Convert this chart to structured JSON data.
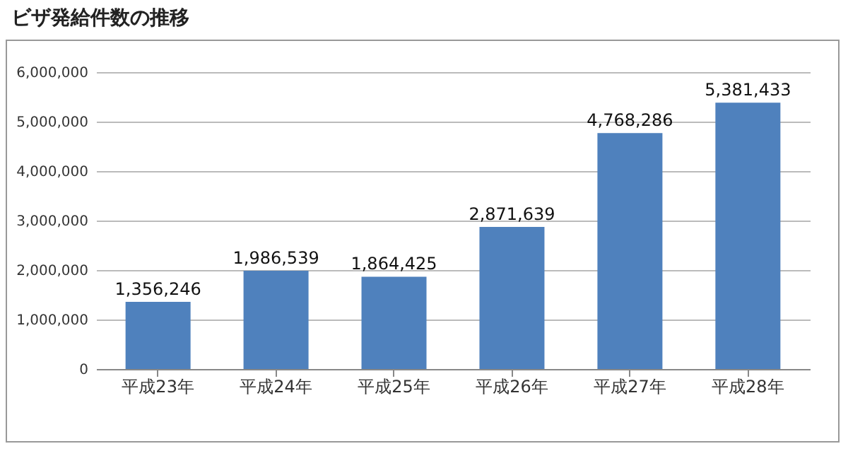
{
  "chart_data": {
    "type": "bar",
    "title": "ビザ発給件数の推移",
    "categories": [
      "平成23年",
      "平成24年",
      "平成25年",
      "平成26年",
      "平成27年",
      "平成28年"
    ],
    "values": [
      1356246,
      1986539,
      1864425,
      2871639,
      4768286,
      5381433
    ],
    "value_labels": [
      "1,356,246",
      "1,986,539",
      "1,864,425",
      "2,871,639",
      "4,768,286",
      "5,381,433"
    ],
    "color": "#4f81bd",
    "ylim": [
      0,
      6000000
    ],
    "yticks": [
      0,
      {
        "value": 1000000,
        "label": "1,000,000"
      },
      {
        "value": 2000000,
        "label": "2,000,000"
      },
      {
        "value": 3000000,
        "label": "3,000,000"
      },
      {
        "value": 4000000,
        "label": "4,000,000"
      },
      {
        "value": 5000000,
        "label": "5,000,000"
      },
      {
        "value": 6000000,
        "label": "6,000,000"
      }
    ],
    "grid": "y",
    "legend": false
  }
}
